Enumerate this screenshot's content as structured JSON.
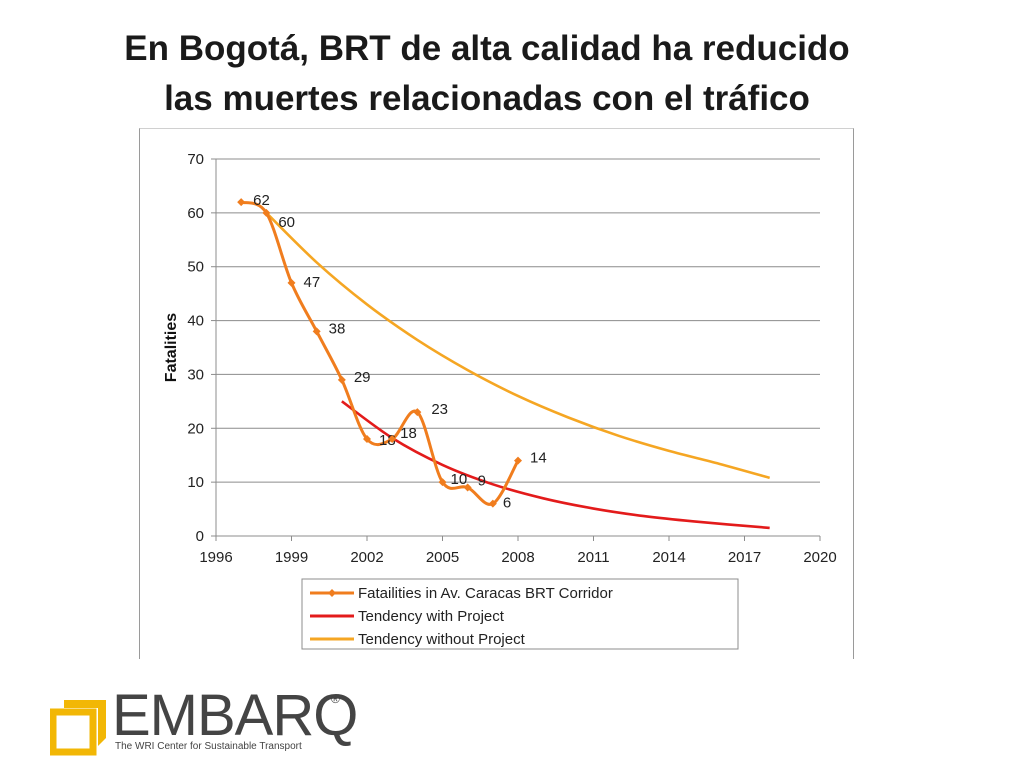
{
  "slide": {
    "title_line1": "En Bogotá, BRT de alta calidad ha reducido",
    "title_line2": "las muertes relacionadas con el tráfico"
  },
  "chart_data": {
    "type": "line",
    "ylabel": "Fatalities",
    "xlabel": "",
    "xlim": [
      1996,
      2020
    ],
    "ylim": [
      0,
      70
    ],
    "xticks": [
      1996,
      1999,
      2002,
      2005,
      2008,
      2011,
      2014,
      2017,
      2020
    ],
    "yticks": [
      0,
      10,
      20,
      30,
      40,
      50,
      60,
      70
    ],
    "grid": "horizontal",
    "legend_position": "bottom",
    "series": [
      {
        "name": "Fatailities in Av. Caracas BRT Corridor",
        "color": "#f07d1e",
        "marker": "diamond",
        "smooth": true,
        "x": [
          1997,
          1998,
          1999,
          2000,
          2001,
          2002,
          2003,
          2004,
          2005,
          2006,
          2007,
          2008
        ],
        "y": [
          62,
          60,
          47,
          38,
          29,
          18,
          18,
          23,
          10,
          9,
          6,
          14
        ],
        "labels": [
          "62",
          "60",
          "47",
          "38",
          "29",
          "18",
          "18",
          "23",
          "10",
          "9",
          "6",
          "14"
        ]
      },
      {
        "name": "Tendency with Project",
        "color": "#e31b1b",
        "marker": "none",
        "smooth": true,
        "x": [
          2001,
          2003,
          2005,
          2007,
          2009,
          2011,
          2013,
          2015,
          2018
        ],
        "y": [
          25,
          18.2,
          13.2,
          9.6,
          7.0,
          5.1,
          3.7,
          2.7,
          1.5
        ]
      },
      {
        "name": "Tendency without Project",
        "color": "#f5a623",
        "marker": "none",
        "smooth": true,
        "x": [
          1998,
          2000,
          2002,
          2004,
          2006,
          2008,
          2010,
          2012,
          2014,
          2016,
          2018
        ],
        "y": [
          60,
          50.8,
          43.0,
          36.4,
          30.8,
          26.0,
          22.0,
          18.6,
          15.8,
          13.4,
          10.8
        ]
      }
    ]
  },
  "logo": {
    "word": "EMBARQ",
    "registered": "®",
    "tagline": "The WRI Center for Sustainable Transport",
    "colors": {
      "yellow": "#f2b705",
      "text": "#444444"
    }
  }
}
